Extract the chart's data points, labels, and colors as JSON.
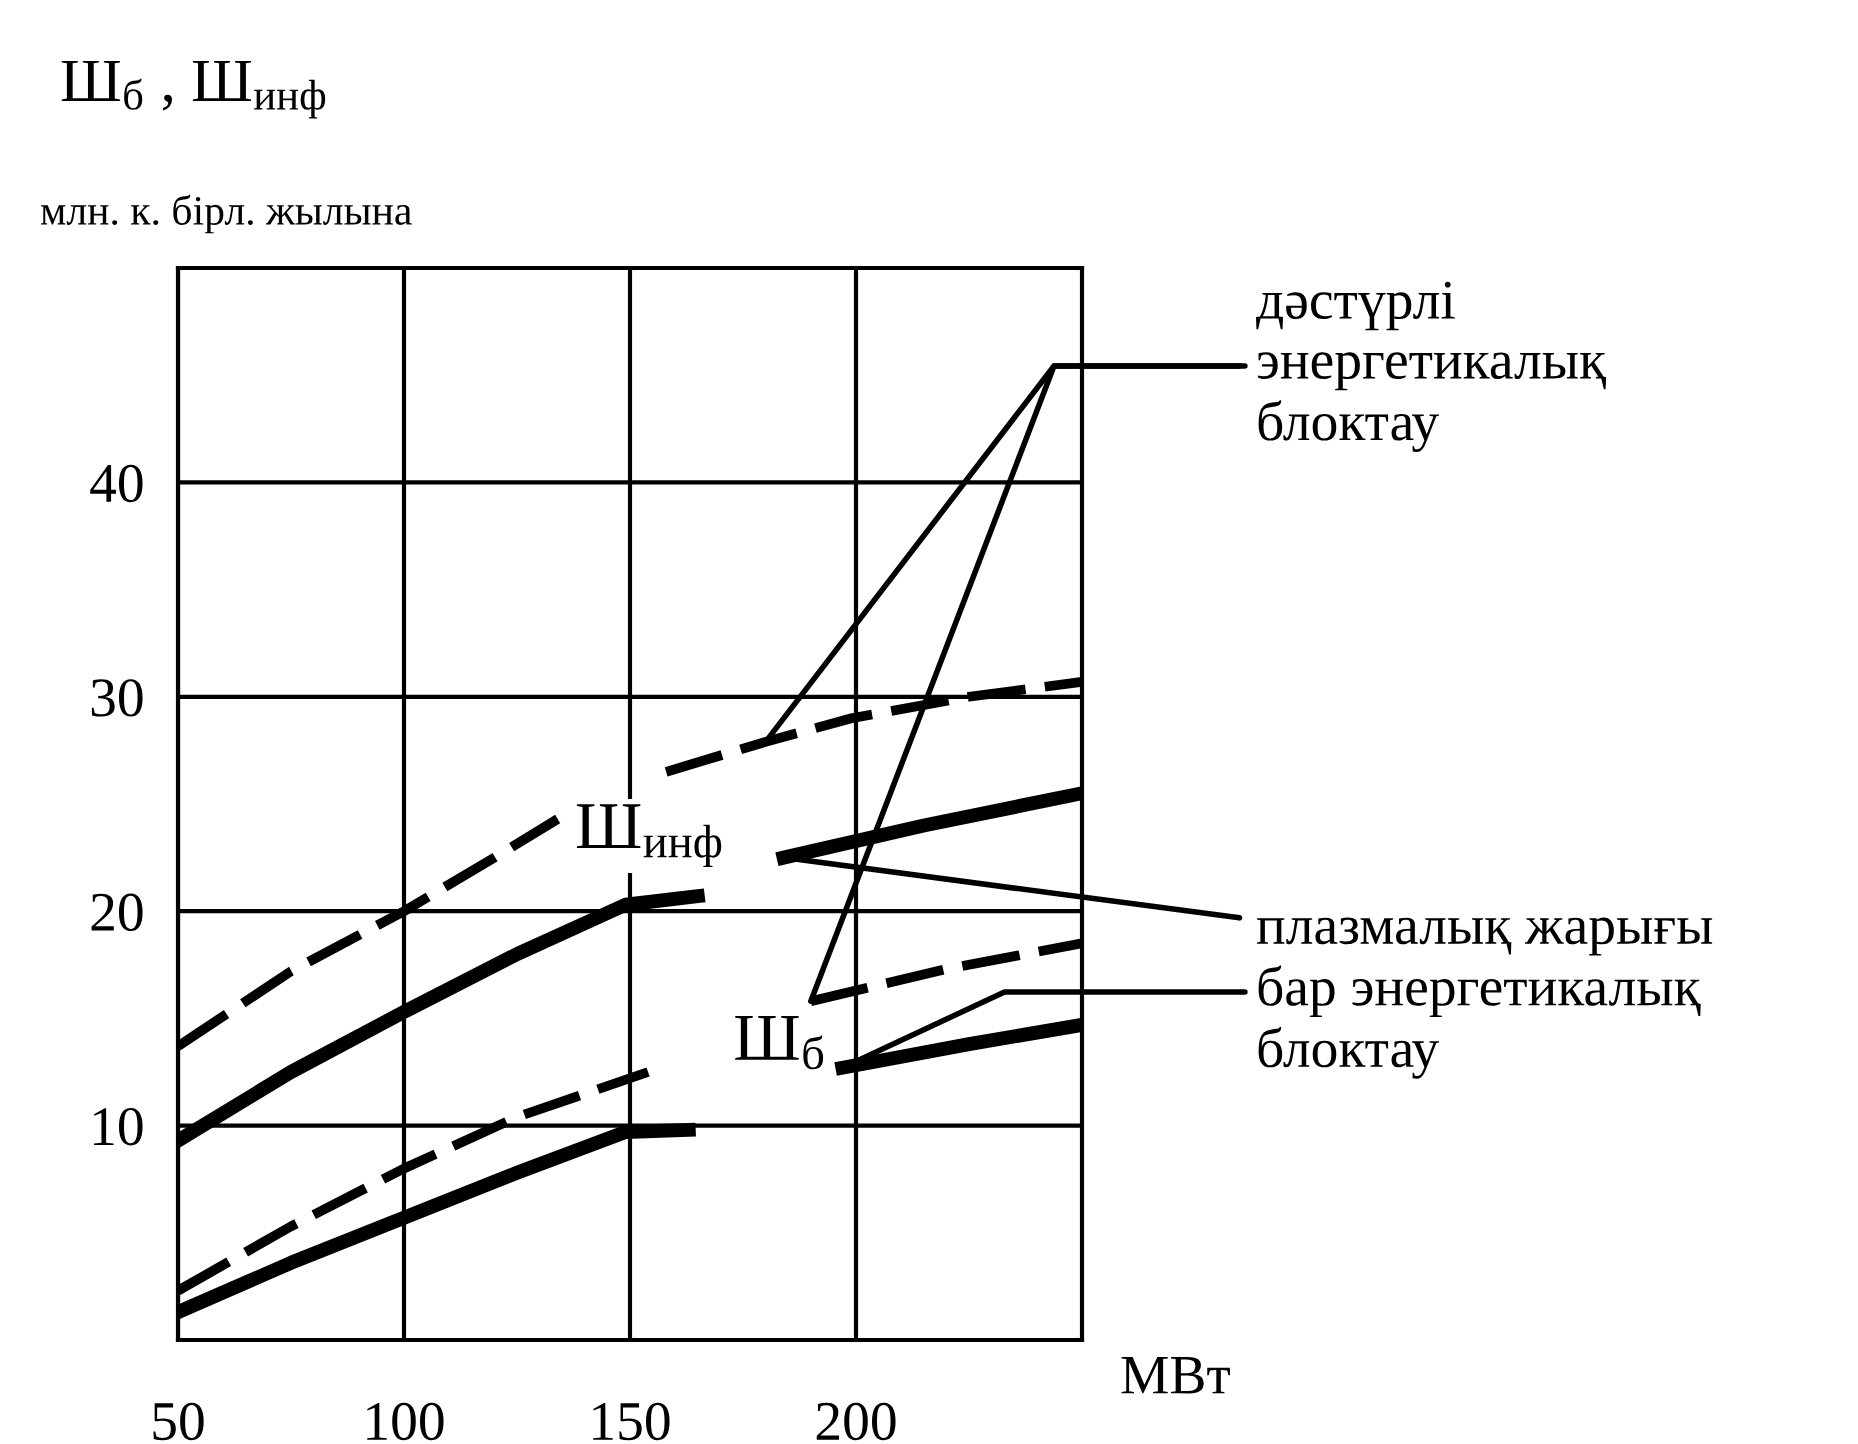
{
  "chart_data": {
    "type": "line",
    "ylabel": "Ш$_{б}$ , Ш$_{инф}$",
    "xlabel": "МВт",
    "annotations": [
      "млн. к. бірл. жылына",
      "Ш$_{инф}$",
      "Ш$_{б}$",
      "дәстүрлі\nэнергетикалық\nблоктау",
      "плазмалық жарығы\nбар энергетикалық\nблоктау"
    ],
    "xlim": [
      50,
      250
    ],
    "ylim": [
      0,
      50
    ],
    "xticks": [
      50,
      100,
      150,
      200
    ],
    "yticks": [
      10,
      20,
      30,
      40
    ],
    "grid": true,
    "series": [
      {
        "color": "#000000",
        "line_style": "dashed",
        "x": [
          50,
          75,
          100,
          120,
          134,
          146,
          158,
          180,
          199,
          225,
          250
        ],
        "values": [
          13.7,
          17.2,
          20,
          22.5,
          24.3,
          null,
          26.5,
          27.9,
          29,
          30,
          30.7
        ]
      },
      {
        "color": "#000000",
        "line_style": "solid",
        "x": [
          50,
          75,
          100,
          125,
          149,
          165,
          175,
          184,
          215,
          250
        ],
        "values": [
          9.3,
          12.5,
          15.3,
          18,
          20.3,
          20.7,
          null,
          22.5,
          24,
          25.5
        ]
      },
      {
        "color": "#000000",
        "line_style": "dashed",
        "x": [
          50,
          75,
          100,
          125,
          154,
          170,
          190,
          220,
          250
        ],
        "values": [
          2.3,
          5.3,
          8,
          10.4,
          12.5,
          null,
          15.8,
          17.3,
          18.5
        ]
      },
      {
        "color": "#000000",
        "line_style": "solid",
        "x": [
          50,
          75,
          100,
          125,
          149,
          163,
          180,
          197,
          225,
          250
        ],
        "values": [
          1.3,
          3.6,
          5.7,
          7.8,
          9.7,
          9.8,
          null,
          12.7,
          13.8,
          14.7
        ]
      }
    ]
  }
}
